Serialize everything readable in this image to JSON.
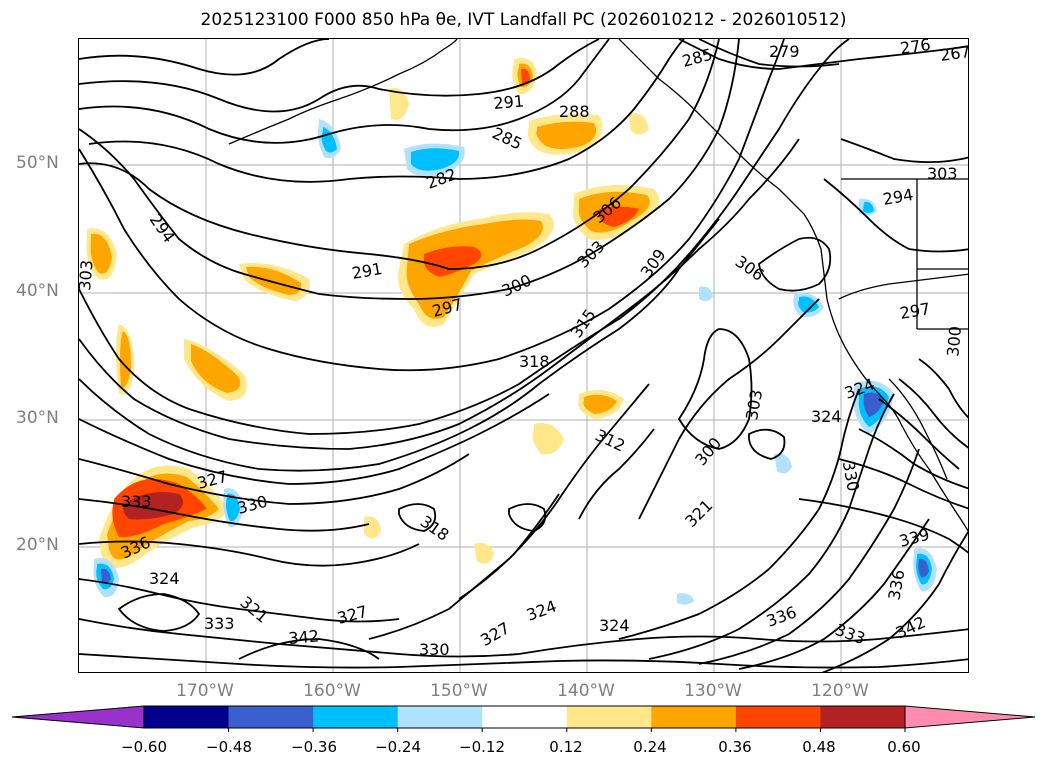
{
  "title": "2025123100 F000 850 hPa θe, IVT Landfall PC (2026010212 - 2026010512)",
  "axes": {
    "lat_ticks": [
      "50°N",
      "40°N",
      "30°N",
      "20°N"
    ],
    "lon_ticks": [
      "170°W",
      "160°W",
      "150°W",
      "140°W",
      "130°W",
      "120°W"
    ]
  },
  "contour_labels": [
    "276",
    "267",
    "279",
    "285",
    "288",
    "291",
    "285",
    "282",
    "291",
    "294",
    "303",
    "297",
    "300",
    "303",
    "306",
    "309",
    "306",
    "315",
    "318",
    "312",
    "303",
    "300",
    "324",
    "333",
    "330",
    "336",
    "324",
    "327",
    "321",
    "318",
    "321",
    "327",
    "333",
    "342",
    "324",
    "327",
    "330",
    "336",
    "333",
    "339",
    "336",
    "342",
    "330",
    "297",
    "294",
    "303",
    "300",
    "324",
    "324"
  ],
  "colorbar": {
    "ticks": [
      "−0.60",
      "−0.48",
      "−0.36",
      "−0.24",
      "−0.12",
      "0.12",
      "0.24",
      "0.36",
      "0.48",
      "0.60"
    ],
    "colors": [
      "#9932CC",
      "#00008B",
      "#3A5FCD",
      "#00BFFF",
      "#B0E2FF",
      "#FFFFFF",
      "#FFE78A",
      "#FFA500",
      "#FF4500",
      "#B22222",
      "#FF8CB0"
    ]
  }
}
